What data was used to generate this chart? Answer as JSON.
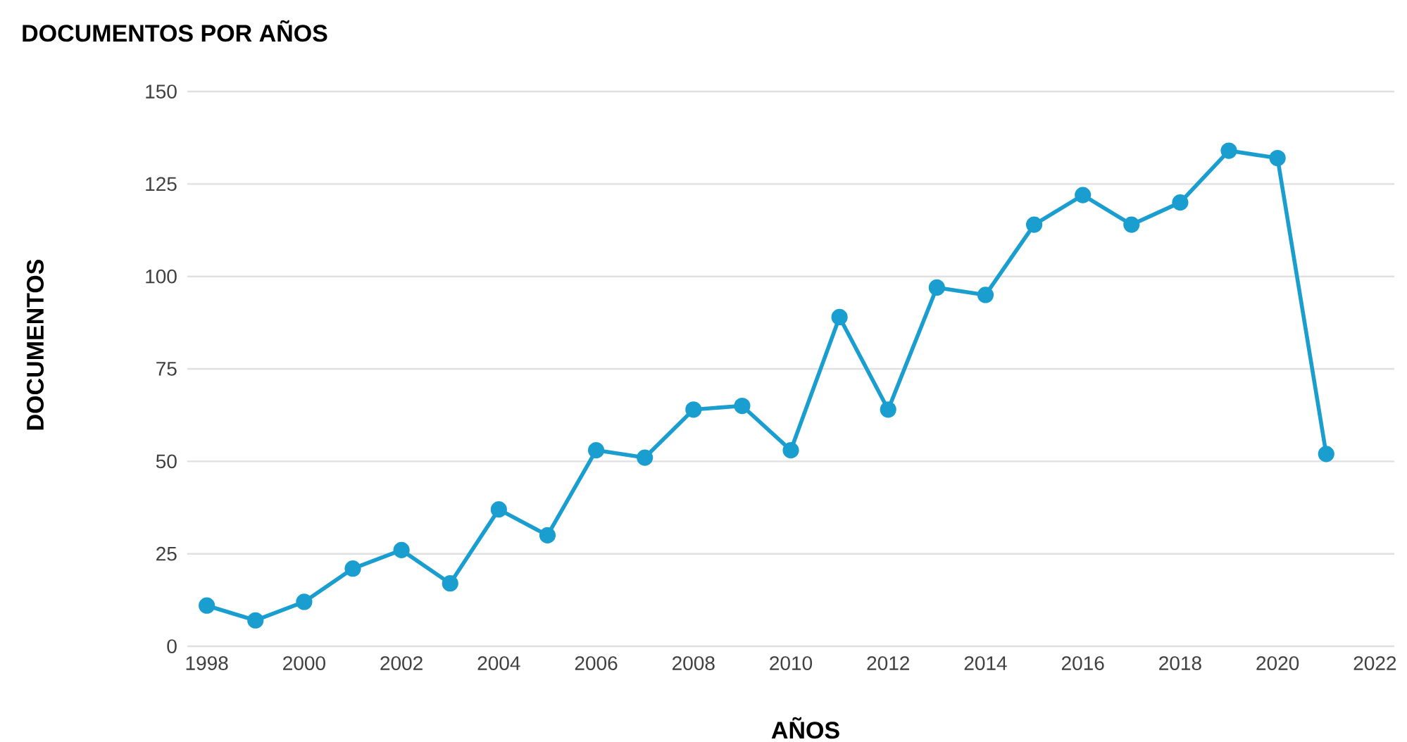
{
  "chart_data": {
    "type": "line",
    "title": "DOCUMENTOS POR AÑOS",
    "xlabel": "AÑOS",
    "ylabel": "DOCUMENTOS",
    "x": [
      1998,
      1999,
      2000,
      2001,
      2002,
      2003,
      2004,
      2005,
      2006,
      2007,
      2008,
      2009,
      2010,
      2011,
      2012,
      2013,
      2014,
      2015,
      2016,
      2017,
      2018,
      2019,
      2020,
      2021
    ],
    "values": [
      11,
      7,
      12,
      21,
      26,
      17,
      37,
      30,
      53,
      51,
      64,
      65,
      53,
      89,
      64,
      97,
      95,
      114,
      122,
      114,
      120,
      134,
      132,
      52
    ],
    "color": "#1a9ed0",
    "marker": "circle",
    "line_style": "solid",
    "grid": "y",
    "xlim": [
      1997.6,
      2022.4
    ],
    "ylim": [
      0,
      150
    ],
    "xticks": [
      1998,
      2000,
      2002,
      2004,
      2006,
      2008,
      2010,
      2012,
      2014,
      2016,
      2018,
      2020,
      2022
    ],
    "yticks": [
      0,
      25,
      50,
      75,
      100,
      125,
      150
    ]
  }
}
